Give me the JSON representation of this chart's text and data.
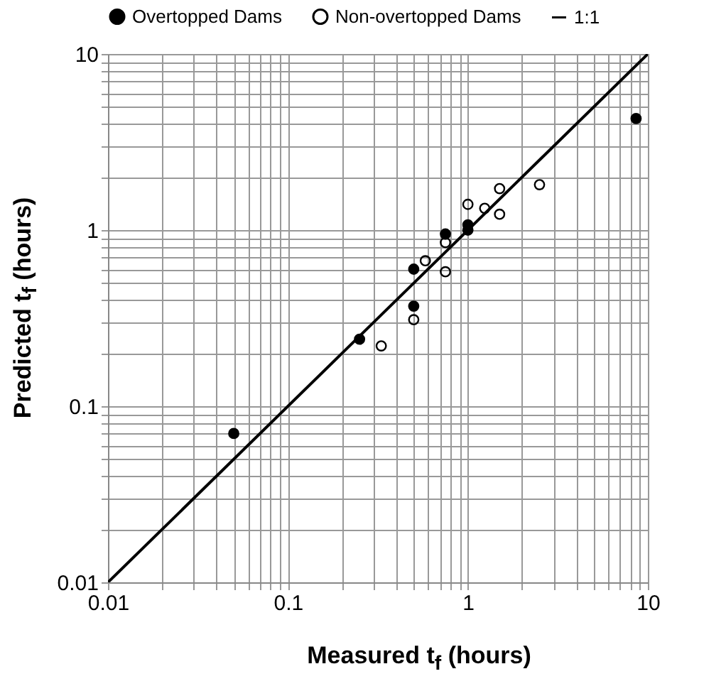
{
  "chart_data": {
    "type": "scatter",
    "xlabel": "Measured t$_{f}$ (hours)",
    "ylabel": "Predicted t$_{f}$ (hours)",
    "log": "xy",
    "grid": true,
    "legend": "top",
    "marker": "circle",
    "xlim": [
      0.01,
      10
    ],
    "ylim": [
      0.01,
      10
    ],
    "xticks": [
      0.01,
      {
        "value": 0.02,
        "label": null
      },
      {
        "value": 0.03,
        "label": null
      },
      {
        "value": 0.04,
        "label": null
      },
      {
        "value": 0.05,
        "label": null
      },
      {
        "value": 0.06,
        "label": null
      },
      {
        "value": 0.07,
        "label": null
      },
      {
        "value": 0.08,
        "label": null
      },
      {
        "value": 0.09,
        "label": null
      },
      0.1,
      {
        "value": 0.2,
        "label": null
      },
      {
        "value": 0.3,
        "label": null
      },
      {
        "value": 0.4,
        "label": null
      },
      {
        "value": 0.5,
        "label": null
      },
      {
        "value": 0.6,
        "label": null
      },
      {
        "value": 0.7,
        "label": null
      },
      {
        "value": 0.8,
        "label": null
      },
      {
        "value": 0.9,
        "label": null
      },
      1,
      {
        "value": 2,
        "label": null
      },
      {
        "value": 3,
        "label": null
      },
      {
        "value": 4,
        "label": null
      },
      {
        "value": 5,
        "label": null
      },
      {
        "value": 6,
        "label": null
      },
      {
        "value": 7,
        "label": null
      },
      {
        "value": 8,
        "label": null
      },
      {
        "value": 9,
        "label": null
      },
      10
    ],
    "yticks": [
      0.01,
      {
        "value": 0.02,
        "label": null
      },
      {
        "value": 0.03,
        "label": null
      },
      {
        "value": 0.04,
        "label": null
      },
      {
        "value": 0.05,
        "label": null
      },
      {
        "value": 0.06,
        "label": null
      },
      {
        "value": 0.07,
        "label": null
      },
      {
        "value": 0.08,
        "label": null
      },
      {
        "value": 0.09,
        "label": null
      },
      0.1,
      {
        "value": 0.2,
        "label": null
      },
      {
        "value": 0.3,
        "label": null
      },
      {
        "value": 0.4,
        "label": null
      },
      {
        "value": 0.5,
        "label": null
      },
      {
        "value": 0.6,
        "label": null
      },
      {
        "value": 0.7,
        "label": null
      },
      {
        "value": 0.8,
        "label": null
      },
      {
        "value": 0.9,
        "label": null
      },
      1,
      {
        "value": 2,
        "label": null
      },
      {
        "value": 3,
        "label": null
      },
      {
        "value": 4,
        "label": null
      },
      {
        "value": 5,
        "label": null
      },
      {
        "value": 6,
        "label": null
      },
      {
        "value": 7,
        "label": null
      },
      {
        "value": 8,
        "label": null
      },
      {
        "value": 9,
        "label": null
      },
      10
    ],
    "series": [
      {
        "name": "Overtopped Dams",
        "color": "#000000",
        "x": [
          0.05,
          0.25,
          0.5,
          0.5,
          0.75,
          1.0,
          1.0,
          8.6
        ],
        "values": [
          0.07,
          0.24,
          0.6,
          0.37,
          0.95,
          1.07,
          1.0,
          4.3
        ]
      },
      {
        "name": "Non-overtopped Dams",
        "color": "#000000",
        "x": [
          0.33,
          0.5,
          0.58,
          0.75,
          0.75,
          1.0,
          1.24,
          1.5,
          1.5,
          2.5
        ],
        "values": [
          0.22,
          0.31,
          0.67,
          0.85,
          0.58,
          1.4,
          1.33,
          1.72,
          1.23,
          1.81
        ]
      },
      {
        "name": "1:1",
        "type": "line",
        "marker": "none",
        "color": "#000000",
        "x": [
          0.01,
          10
        ],
        "values": [
          0.01,
          10
        ]
      }
    ]
  }
}
